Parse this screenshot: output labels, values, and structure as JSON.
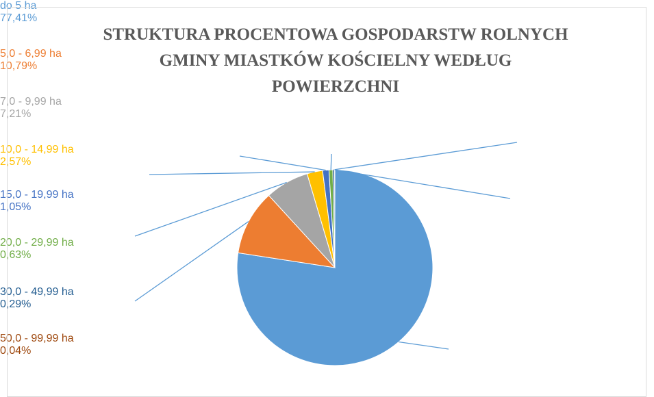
{
  "chart_data": {
    "type": "pie",
    "title": "STRUKTURA PROCENTOWA GOSPODARSTW ROLNYCH GMINY MIASTKÓW KOŚCIELNY WEDŁUG POWIERZCHNI",
    "categories": [
      "do 5 ha",
      "5,0 - 6,99 ha",
      "7,0 - 9,99 ha",
      "10,0 - 14,99 ha",
      "15,0 - 19,99 ha",
      "20,0 - 29,99 ha",
      "30,0 - 49,99 ha",
      "50,0 - 99,99 ha"
    ],
    "values": [
      77.41,
      10.79,
      7.21,
      2.57,
      1.05,
      0.63,
      0.29,
      0.04
    ],
    "value_labels": [
      "77,41%",
      "10,79%",
      "7,21%",
      "2,57%",
      "1,05%",
      "0,63%",
      "0,29%",
      "0,04%"
    ],
    "colors": [
      "#5b9bd5",
      "#ed7d31",
      "#a5a5a5",
      "#ffc000",
      "#4472c4",
      "#70ad47",
      "#255e91",
      "#9e480e"
    ]
  }
}
